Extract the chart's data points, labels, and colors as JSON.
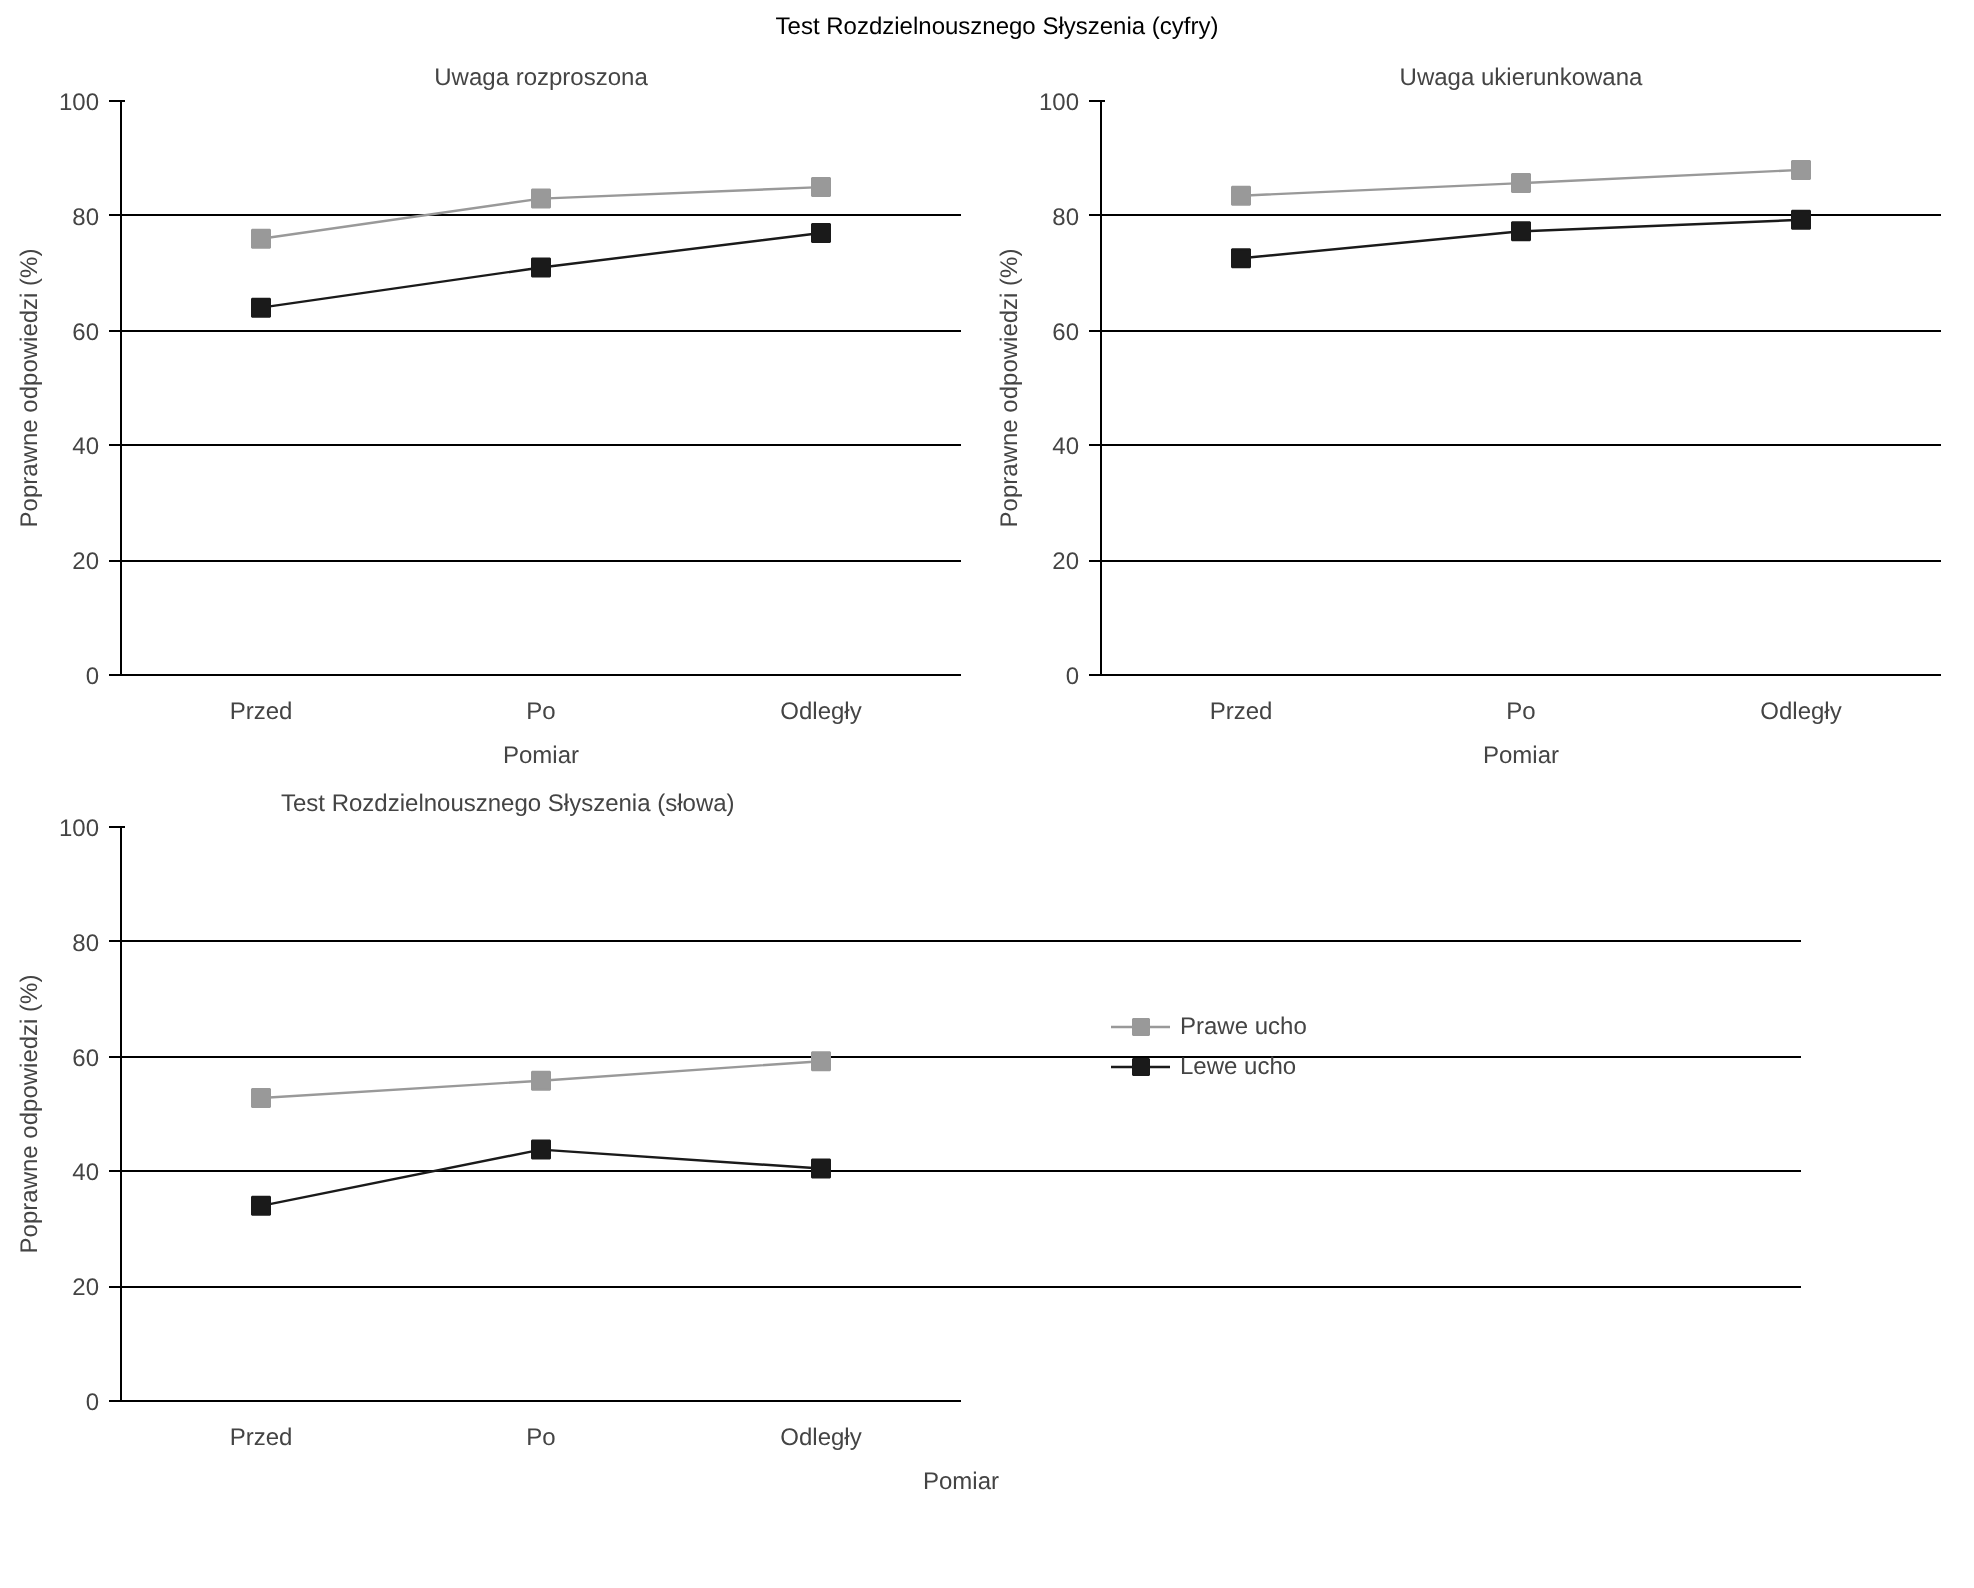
{
  "chart_data": [
    {
      "type": "line",
      "title": "Uwaga rozproszona",
      "annotations": [
        "Test Rozdzielnousznego Słyszenia (cyfry)"
      ],
      "xlabel": "Pomiar",
      "ylabel": "Poprawne odpowiedzi (%)",
      "categories": [
        "Przed",
        "Po",
        "Odległy"
      ],
      "ylim": [
        0,
        100
      ],
      "yticks": [
        0,
        20,
        40,
        60,
        80,
        100
      ],
      "grid": "y",
      "marker": "square",
      "line_style": "solid",
      "series": [
        {
          "color": "#999999",
          "values": [
            76,
            83,
            85
          ]
        },
        {
          "color": "#1a1a1a",
          "values": [
            64,
            71,
            77
          ]
        }
      ]
    },
    {
      "type": "line",
      "title": "Uwaga ukierunkowana",
      "xlabel": "Pomiar",
      "ylabel": "Poprawne odpowiedzi (%)",
      "categories": [
        "Przed",
        "Po",
        "Odległy"
      ],
      "ylim": [
        0,
        100
      ],
      "yticks": [
        0,
        20,
        40,
        60,
        80,
        100
      ],
      "grid": "y",
      "marker": "square",
      "line_style": "solid",
      "series": [
        {
          "color": "#999999",
          "values": [
            83.5,
            85.7,
            88
          ]
        },
        {
          "color": "#1a1a1a",
          "values": [
            72.6,
            77.3,
            79.3
          ]
        }
      ]
    },
    {
      "type": "line",
      "title": "Test Rozdzielnousznego Słyszenia (słowa)",
      "xlabel": "Pomiar",
      "ylabel": "Poprawne odpowiedzi (%)",
      "categories": [
        "Przed",
        "Po",
        "Odległy"
      ],
      "ylim": [
        0,
        100
      ],
      "yticks": [
        0,
        20,
        40,
        60,
        80,
        100
      ],
      "grid": "y",
      "marker": "square",
      "line_style": "solid",
      "legend": "right",
      "series": [
        {
          "name": "Prawe ucho",
          "color": "#999999",
          "values": [
            52.8,
            55.8,
            59.2
          ]
        },
        {
          "name": "Lewe ucho",
          "color": "#1a1a1a",
          "values": [
            34,
            43.8,
            40.5
          ]
        }
      ]
    }
  ]
}
